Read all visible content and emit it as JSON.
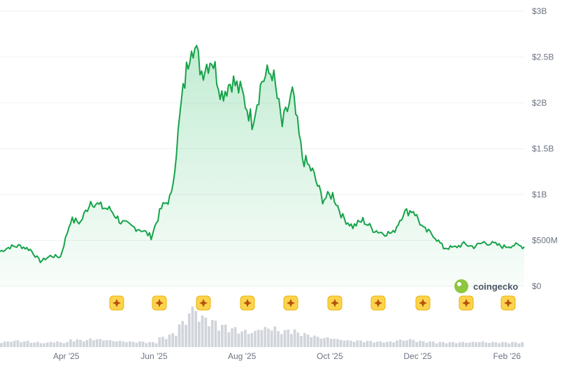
{
  "watermark": {
    "text": "coingecko"
  },
  "chart_data": {
    "type": "area",
    "series": [
      {
        "x": [
          "2025-02-14",
          "2025-02-21",
          "2025-02-28",
          "2025-03-07",
          "2025-03-14",
          "2025-03-21",
          "2025-03-28",
          "2025-04-04",
          "2025-04-11",
          "2025-04-18",
          "2025-04-25",
          "2025-05-02",
          "2025-05-09",
          "2025-05-16",
          "2025-05-23",
          "2025-05-30",
          "2025-06-06",
          "2025-06-13",
          "2025-06-20",
          "2025-06-27",
          "2025-07-04",
          "2025-07-11",
          "2025-07-18",
          "2025-07-25",
          "2025-08-01",
          "2025-08-08",
          "2025-08-15",
          "2025-08-22",
          "2025-08-29",
          "2025-09-05",
          "2025-09-12",
          "2025-09-19",
          "2025-09-26",
          "2025-10-03",
          "2025-10-10",
          "2025-10-17",
          "2025-10-24",
          "2025-10-31",
          "2025-11-07",
          "2025-11-14",
          "2025-11-21",
          "2025-11-28",
          "2025-12-05",
          "2025-12-12",
          "2025-12-19",
          "2025-12-26",
          "2026-01-02",
          "2026-01-09",
          "2026-01-16",
          "2026-01-23",
          "2026-01-30",
          "2026-02-06",
          "2026-02-13"
        ],
        "values": [
          380000000,
          430000000,
          440000000,
          400000000,
          270000000,
          330000000,
          320000000,
          720000000,
          700000000,
          930000000,
          870000000,
          830000000,
          700000000,
          650000000,
          620000000,
          540000000,
          850000000,
          980000000,
          2000000000,
          2700000000,
          2350000000,
          2500000000,
          2100000000,
          2250000000,
          2100000000,
          1800000000,
          2250000000,
          2350000000,
          1750000000,
          2100000000,
          1400000000,
          1250000000,
          950000000,
          1000000000,
          750000000,
          650000000,
          720000000,
          620000000,
          580000000,
          580000000,
          800000000,
          830000000,
          620000000,
          560000000,
          420000000,
          420000000,
          460000000,
          430000000,
          480000000,
          460000000,
          430000000,
          450000000,
          430000000
        ]
      }
    ],
    "volume": [
      10,
      12,
      11,
      9,
      8,
      10,
      9,
      14,
      13,
      15,
      14,
      12,
      11,
      10,
      10,
      9,
      18,
      24,
      45,
      70,
      55,
      48,
      40,
      35,
      30,
      28,
      35,
      36,
      30,
      32,
      26,
      22,
      18,
      17,
      14,
      12,
      12,
      11,
      10,
      10,
      13,
      14,
      11,
      10,
      9,
      9,
      9,
      9,
      10,
      9,
      9,
      9,
      9
    ],
    "ylim": [
      0,
      3000000000
    ],
    "y_ticks": [
      "$0",
      "$500M",
      "$1B",
      "$1.5B",
      "$2B",
      "$2.5B",
      "$3B"
    ],
    "x_ticks": [
      "Apr '25",
      "Jun '25",
      "Aug '25",
      "Oct '25",
      "Dec '25",
      "Feb '26"
    ],
    "event_markers": 10,
    "colors": {
      "line": "#16a34a",
      "area": "#c7ecd4",
      "grid": "#eef0f2",
      "tick_text": "#6b7280",
      "marker": "#fcd34d",
      "marker_border": "#eab308",
      "marker_glyph": "#b45309",
      "volume": "#d1d5db",
      "logo": "#8dc63f"
    },
    "grid": true,
    "legend": "none"
  }
}
